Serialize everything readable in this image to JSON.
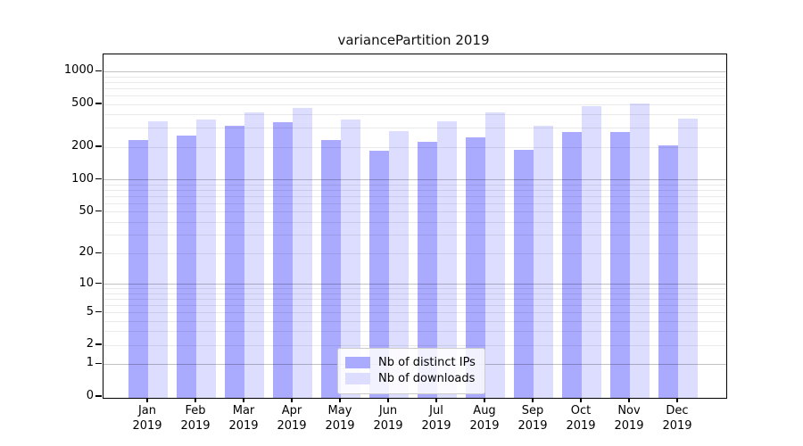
{
  "title": "variancePartition 2019",
  "legend": {
    "position": "lower center",
    "items": [
      {
        "label": "Nb of distinct IPs",
        "color": "#aaaaff"
      },
      {
        "label": "Nb of downloads",
        "color": "#ddddff"
      }
    ]
  },
  "colors": {
    "bar_distinct_ips": "#aaaaff",
    "bar_downloads": "#ddddff",
    "axis": "#000000",
    "background": "#ffffff"
  },
  "chart_data": {
    "type": "bar",
    "title": "variancePartition 2019",
    "categories": [
      "Jan 2019",
      "Feb 2019",
      "Mar 2019",
      "Apr 2019",
      "May 2019",
      "Jun 2019",
      "Jul 2019",
      "Aug 2019",
      "Sep 2019",
      "Oct 2019",
      "Nov 2019",
      "Dec 2019"
    ],
    "series": [
      {
        "name": "Nb of distinct IPs",
        "color": "#aaaaff",
        "values": [
          237,
          264,
          324,
          347,
          240,
          190,
          228,
          251,
          192,
          282,
          283,
          212
        ]
      },
      {
        "name": "Nb of downloads",
        "color": "#ddddff",
        "values": [
          356,
          367,
          433,
          470,
          367,
          291,
          356,
          433,
          324,
          489,
          515,
          374
        ]
      }
    ],
    "xlabel": "",
    "ylabel": "",
    "yscale": "log10(value+1)",
    "y_ticks": [
      0,
      1,
      2,
      5,
      10,
      20,
      50,
      100,
      200,
      500,
      1000
    ],
    "ylim": [
      0,
      1450
    ],
    "grid": "both",
    "legend_position": "lower center"
  }
}
